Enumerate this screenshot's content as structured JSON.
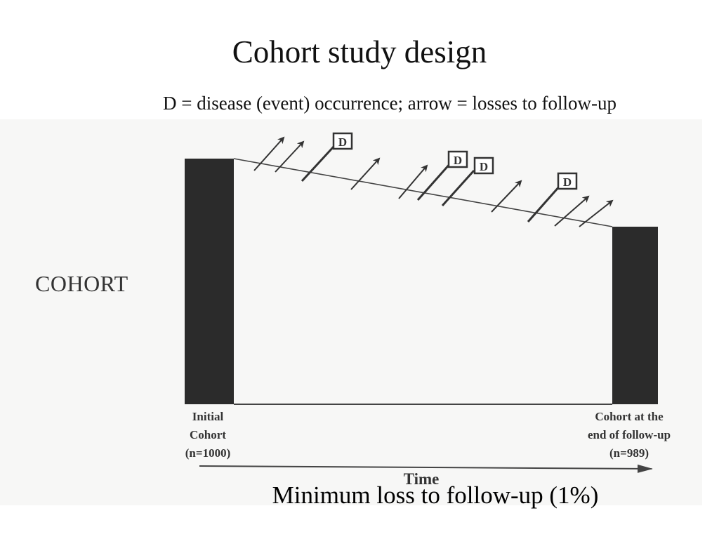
{
  "slide": {
    "title": "Cohort study design",
    "subtitle": "D = disease (event) occurrence; arrow = losses to follow-up",
    "caption": "Minimum loss to follow-up (1%)"
  },
  "diagram": {
    "cohort_label": "COHORT",
    "initial_bar": {
      "lines": [
        "Initial",
        "Cohort",
        "(n=1000)"
      ],
      "n": 1000
    },
    "final_bar": {
      "lines": [
        "Cohort at the",
        "end of follow-up",
        "(n=989)"
      ],
      "n": 989
    },
    "axis_label": "Time",
    "event_marker": "D",
    "loss_arrows_count": 11,
    "events_count": 4
  },
  "colors": {
    "bar": "#2b2b2b",
    "ink": "#333333",
    "scan_bg": "#f7f7f6"
  }
}
